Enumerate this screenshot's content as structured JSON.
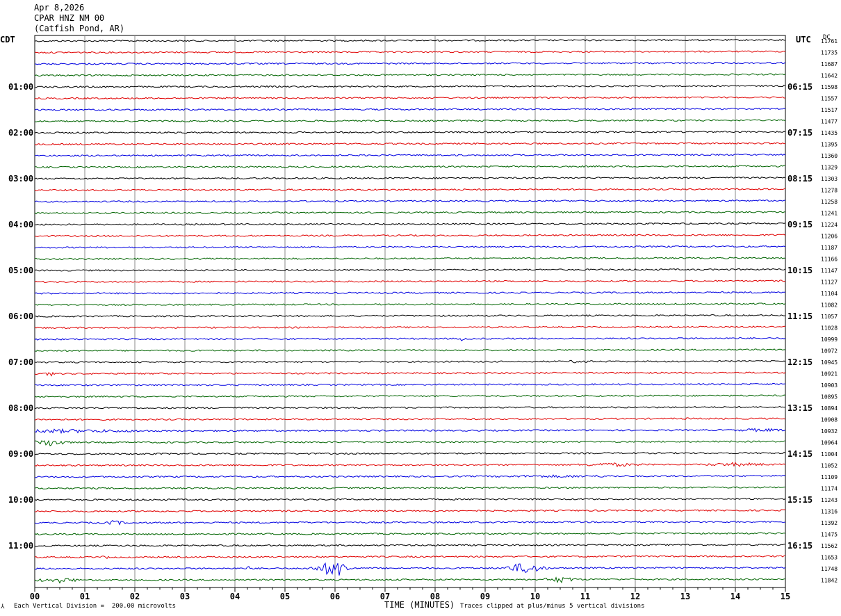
{
  "header": {
    "date": "Apr 8,2026",
    "station": "CPAR HNZ NM 00",
    "location": "(Catfish Pond, AR)"
  },
  "left_tz": "CDT",
  "right_tz": "UTC",
  "dc_label": "DC",
  "footer": {
    "scale_note": "Each Vertical Division =  200.00 microvolts",
    "clip_note": "Traces clipped at plus/minus 5 vertical divisions",
    "xlabel": "TIME (MINUTES)"
  },
  "colors": {
    "trace_cycle": [
      "#000000",
      "#e00000",
      "#0000e0",
      "#006400"
    ],
    "grid": "#888888"
  },
  "chart_data": {
    "type": "line",
    "xlabel": "TIME (MINUTES)",
    "xlim": [
      0,
      15
    ],
    "x_ticks": [
      "00",
      "01",
      "02",
      "03",
      "04",
      "05",
      "06",
      "07",
      "08",
      "09",
      "10",
      "11",
      "12",
      "13",
      "14",
      "15"
    ],
    "left_time_labels": [
      "01:00",
      "02:00",
      "03:00",
      "04:00",
      "05:00",
      "06:00",
      "07:00",
      "08:00",
      "09:00",
      "10:00",
      "11:00"
    ],
    "right_time_labels": [
      "06:15",
      "07:15",
      "08:15",
      "09:15",
      "10:15",
      "11:15",
      "12:15",
      "13:15",
      "14:15",
      "15:15",
      "16:15"
    ],
    "dc_values": [
      "11761",
      "11735",
      "11687",
      "11642",
      "11598",
      "11557",
      "11517",
      "11477",
      "11435",
      "11395",
      "11360",
      "11329",
      "11303",
      "11278",
      "11258",
      "11241",
      "11224",
      "11206",
      "11187",
      "11166",
      "11147",
      "11127",
      "11104",
      "11082",
      "11057",
      "11028",
      "10999",
      "10972",
      "10945",
      "10921",
      "10903",
      "10895",
      "10894",
      "10908",
      "10932",
      "10964",
      "11004",
      "11052",
      "11109",
      "11174",
      "11243",
      "11316",
      "11392",
      "11475",
      "11562",
      "11653",
      "11748",
      "11842"
    ],
    "trace_count": 48,
    "trace_minutes": 15
  }
}
